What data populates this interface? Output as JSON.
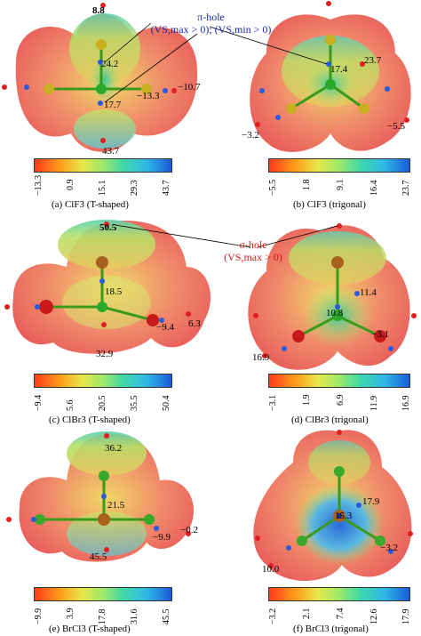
{
  "annotations": {
    "pi_hole_title": "π-hole",
    "pi_hole_condition": "(VS,max > 0);  (VS,min > 0)",
    "sigma_hole_title": "σ-hole",
    "sigma_hole_condition": "(VS,max > 0)"
  },
  "panels": [
    {
      "id": "a",
      "caption": "(a) ClF3 (T-shaped)",
      "values": [
        "8.8",
        "24.2",
        "17.7",
        "−13.3",
        "−10.7",
        "43.7"
      ],
      "colorbar": [
        "−13.3",
        "0.9",
        "15.1",
        "29.3",
        "43.7"
      ]
    },
    {
      "id": "b",
      "caption": "(b) ClF3 (trigonal)",
      "values": [
        "17.4",
        "23.7",
        "−3.2",
        "−5.5"
      ],
      "colorbar": [
        "−5.5",
        "1.8",
        "9.1",
        "16.4",
        "23.7"
      ]
    },
    {
      "id": "c",
      "caption": "(c) ClBr3 (T-shaped)",
      "values": [
        "50.5",
        "18.5",
        "−9.4",
        "6.3",
        "32.9"
      ],
      "colorbar": [
        "−9.4",
        "5.6",
        "20.5",
        "35.5",
        "50.4"
      ]
    },
    {
      "id": "d",
      "caption": "(d) ClBr3 (trigonal)",
      "values": [
        "11.4",
        "10.8",
        "−3.1",
        "16.9"
      ],
      "colorbar": [
        "−3.1",
        "1.9",
        "6.9",
        "11.9",
        "16.9"
      ]
    },
    {
      "id": "e",
      "caption": "(e) BrCl3 (T-shaped)",
      "values": [
        "36.2",
        "21.5",
        "−9.9",
        "−0.2",
        "45.5"
      ],
      "colorbar": [
        "−9.9",
        "3.9",
        "17.8",
        "31.6",
        "45.5"
      ]
    },
    {
      "id": "f",
      "caption": "(f) BrCl3 (trigonal)",
      "values": [
        "17.9",
        "15.3",
        "−3.2",
        "10.0"
      ],
      "colorbar": [
        "−3.2",
        "2.1",
        "7.4",
        "12.6",
        "17.9"
      ]
    }
  ]
}
